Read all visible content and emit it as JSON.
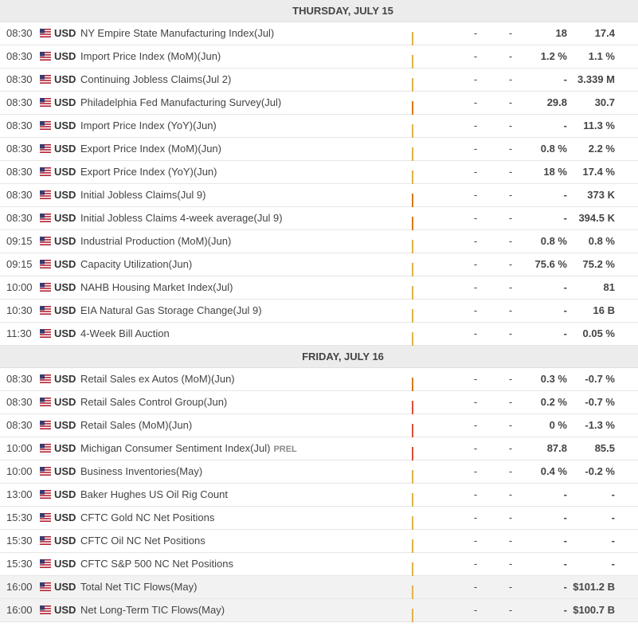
{
  "colors": {
    "low": "#f5c65c",
    "medium": "#e0811f",
    "high": "#d64f3c",
    "header_bg": "#ececec"
  },
  "flag_icon": "us-flag-icon",
  "days": [
    {
      "header": "THURSDAY, JULY 15",
      "events": [
        {
          "time": "08:30",
          "currency": "USD",
          "name": "NY Empire State Manufacturing Index(Jul)",
          "volatility": "low",
          "actual": "-",
          "deviation": "-",
          "consensus": "18",
          "previous": "17.4"
        },
        {
          "time": "08:30",
          "currency": "USD",
          "name": "Import Price Index (MoM)(Jun)",
          "volatility": "low",
          "actual": "-",
          "deviation": "-",
          "consensus": "1.2 %",
          "previous": "1.1 %"
        },
        {
          "time": "08:30",
          "currency": "USD",
          "name": "Continuing Jobless Claims(Jul 2)",
          "volatility": "low",
          "actual": "-",
          "deviation": "-",
          "consensus": "-",
          "previous": "3.339 M"
        },
        {
          "time": "08:30",
          "currency": "USD",
          "name": "Philadelphia Fed Manufacturing Survey(Jul)",
          "volatility": "medium",
          "actual": "-",
          "deviation": "-",
          "consensus": "29.8",
          "previous": "30.7"
        },
        {
          "time": "08:30",
          "currency": "USD",
          "name": "Import Price Index (YoY)(Jun)",
          "volatility": "low",
          "actual": "-",
          "deviation": "-",
          "consensus": "-",
          "previous": "11.3 %"
        },
        {
          "time": "08:30",
          "currency": "USD",
          "name": "Export Price Index (MoM)(Jun)",
          "volatility": "low",
          "actual": "-",
          "deviation": "-",
          "consensus": "0.8 %",
          "previous": "2.2 %"
        },
        {
          "time": "08:30",
          "currency": "USD",
          "name": "Export Price Index (YoY)(Jun)",
          "volatility": "low",
          "actual": "-",
          "deviation": "-",
          "consensus": "18 %",
          "previous": "17.4 %"
        },
        {
          "time": "08:30",
          "currency": "USD",
          "name": "Initial Jobless Claims(Jul 9)",
          "volatility": "medium",
          "actual": "-",
          "deviation": "-",
          "consensus": "-",
          "previous": "373 K"
        },
        {
          "time": "08:30",
          "currency": "USD",
          "name": "Initial Jobless Claims 4-week average(Jul 9)",
          "volatility": "medium",
          "actual": "-",
          "deviation": "-",
          "consensus": "-",
          "previous": "394.5 K"
        },
        {
          "time": "09:15",
          "currency": "USD",
          "name": "Industrial Production (MoM)(Jun)",
          "volatility": "low",
          "actual": "-",
          "deviation": "-",
          "consensus": "0.8 %",
          "previous": "0.8 %"
        },
        {
          "time": "09:15",
          "currency": "USD",
          "name": "Capacity Utilization(Jun)",
          "volatility": "low",
          "actual": "-",
          "deviation": "-",
          "consensus": "75.6 %",
          "previous": "75.2 %"
        },
        {
          "time": "10:00",
          "currency": "USD",
          "name": "NAHB Housing Market Index(Jul)",
          "volatility": "low",
          "actual": "-",
          "deviation": "-",
          "consensus": "-",
          "previous": "81"
        },
        {
          "time": "10:30",
          "currency": "USD",
          "name": "EIA Natural Gas Storage Change(Jul 9)",
          "volatility": "low",
          "actual": "-",
          "deviation": "-",
          "consensus": "-",
          "previous": "16 B"
        },
        {
          "time": "11:30",
          "currency": "USD",
          "name": "4-Week Bill Auction",
          "volatility": "low",
          "actual": "-",
          "deviation": "-",
          "consensus": "-",
          "previous": "0.05 %"
        }
      ]
    },
    {
      "header": "FRIDAY, JULY 16",
      "events": [
        {
          "time": "08:30",
          "currency": "USD",
          "name": "Retail Sales ex Autos (MoM)(Jun)",
          "volatility": "medium",
          "actual": "-",
          "deviation": "-",
          "consensus": "0.3 %",
          "previous": "-0.7 %"
        },
        {
          "time": "08:30",
          "currency": "USD",
          "name": "Retail Sales Control Group(Jun)",
          "volatility": "high",
          "actual": "-",
          "deviation": "-",
          "consensus": "0.2 %",
          "previous": "-0.7 %"
        },
        {
          "time": "08:30",
          "currency": "USD",
          "name": "Retail Sales (MoM)(Jun)",
          "volatility": "high",
          "actual": "-",
          "deviation": "-",
          "consensus": "0 %",
          "previous": "-1.3 %"
        },
        {
          "time": "10:00",
          "currency": "USD",
          "name": "Michigan Consumer Sentiment Index(Jul)",
          "tag": "PREL",
          "volatility": "high",
          "actual": "-",
          "deviation": "-",
          "consensus": "87.8",
          "previous": "85.5"
        },
        {
          "time": "10:00",
          "currency": "USD",
          "name": "Business Inventories(May)",
          "volatility": "low",
          "actual": "-",
          "deviation": "-",
          "consensus": "0.4 %",
          "previous": "-0.2 %"
        },
        {
          "time": "13:00",
          "currency": "USD",
          "name": "Baker Hughes US Oil Rig Count",
          "volatility": "low",
          "actual": "-",
          "deviation": "-",
          "consensus": "-",
          "previous": "-"
        },
        {
          "time": "15:30",
          "currency": "USD",
          "name": "CFTC Gold NC Net Positions",
          "volatility": "low",
          "actual": "-",
          "deviation": "-",
          "consensus": "-",
          "previous": "-"
        },
        {
          "time": "15:30",
          "currency": "USD",
          "name": "CFTC Oil NC Net Positions",
          "volatility": "low",
          "actual": "-",
          "deviation": "-",
          "consensus": "-",
          "previous": "-"
        },
        {
          "time": "15:30",
          "currency": "USD",
          "name": "CFTC S&P 500 NC Net Positions",
          "volatility": "low",
          "actual": "-",
          "deviation": "-",
          "consensus": "-",
          "previous": "-"
        },
        {
          "time": "16:00",
          "currency": "USD",
          "name": "Total Net TIC Flows(May)",
          "volatility": "low",
          "actual": "-",
          "deviation": "-",
          "consensus": "-",
          "previous": "$101.2 B",
          "past": true
        },
        {
          "time": "16:00",
          "currency": "USD",
          "name": "Net Long-Term TIC Flows(May)",
          "volatility": "low",
          "actual": "-",
          "deviation": "-",
          "consensus": "-",
          "previous": "$100.7 B",
          "past": true
        }
      ]
    }
  ]
}
